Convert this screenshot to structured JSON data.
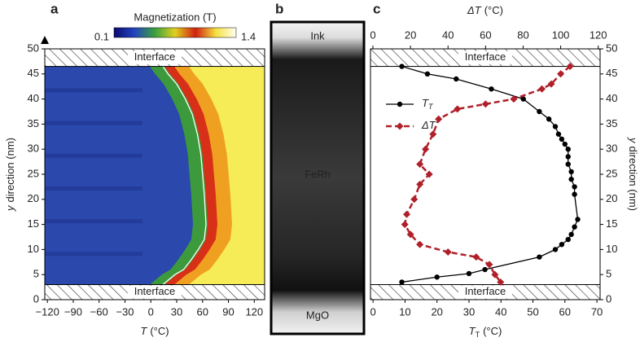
{
  "chart_data": [
    {
      "type": "heatmap",
      "panel_label": "a",
      "colorbar": {
        "label": "Magnetization (T)",
        "ticks": [
          0.1,
          1.4
        ],
        "colors": [
          "#0a0a70",
          "#2244c0",
          "#3aa040",
          "#e0d020",
          "#d02010",
          "#f5e040",
          "#fffff0"
        ]
      },
      "region_colors": {
        "low": "#2b48ad",
        "edge": "#3c9a3c",
        "rise": "#d83018",
        "warm": "#f0a020",
        "high": "#f6ec58"
      },
      "xlabel": {
        "var": "T",
        "unit": "(°C)"
      },
      "ylabel": {
        "var": "y",
        "unit": "direction (nm)"
      },
      "xlim": [
        -123,
        132
      ],
      "xticks": [
        {
          "value": -120,
          "label": "−120"
        },
        {
          "value": -90,
          "label": "−90"
        },
        {
          "value": -60,
          "label": "−60"
        },
        {
          "value": -30,
          "label": "−30"
        },
        0,
        30,
        60,
        90,
        120
      ],
      "ylim": [
        0,
        50
      ],
      "yticks": [
        0,
        5,
        10,
        15,
        20,
        25,
        30,
        35,
        40,
        45,
        50
      ],
      "interfaces": [
        {
          "range": [
            46.5,
            50
          ],
          "label": "Interface"
        },
        {
          "range": [
            0,
            3
          ],
          "label": "Interface"
        }
      ],
      "contour": {
        "x": [
          14,
          20,
          30,
          40,
          48,
          54,
          58,
          60,
          62,
          63,
          64,
          62,
          55,
          47,
          38,
          28,
          14
        ],
        "y": [
          46.5,
          45,
          43,
          40,
          37,
          33,
          29,
          25,
          21,
          18,
          15,
          12,
          10,
          8,
          6,
          5,
          3
        ]
      }
    },
    {
      "type": "image",
      "panel_label": "b",
      "labels": [
        "Ink",
        "FeRh",
        "MgO"
      ]
    },
    {
      "type": "line",
      "panel_label": "c",
      "xlabel": {
        "var": "T",
        "sub": "T",
        "unit": "(°C)"
      },
      "x2label": {
        "var": "ΔT",
        "unit": "(°C)"
      },
      "xlim": [
        -0.8,
        71
      ],
      "xticks": [
        0,
        10,
        20,
        30,
        40,
        50,
        60,
        70
      ],
      "x2lim": [
        -1.3,
        121
      ],
      "x2ticks": [
        0,
        20,
        40,
        60,
        80,
        100,
        120
      ],
      "ylim": [
        0,
        50
      ],
      "yticks": [
        0,
        5,
        10,
        15,
        20,
        25,
        30,
        35,
        40,
        45,
        50
      ],
      "ylabel": {
        "var": "y",
        "unit": "direction (nm)"
      },
      "interfaces": [
        {
          "range": [
            46.5,
            50
          ],
          "label": "Interface"
        },
        {
          "range": [
            0,
            3
          ],
          "label": "Interface"
        }
      ],
      "series": [
        {
          "name": "T",
          "name_sub": "T",
          "color": "#000000",
          "marker": "circle",
          "dashed": false,
          "x": [
            9,
            17,
            26,
            37,
            47,
            52,
            55,
            57,
            58,
            59,
            60,
            61,
            61,
            61,
            62,
            62,
            63,
            63,
            64,
            63,
            62,
            61,
            59,
            57,
            52,
            35,
            30,
            20,
            9
          ],
          "y": [
            46.5,
            45,
            44,
            42,
            40,
            37.5,
            36,
            34.5,
            33,
            32,
            31,
            30,
            28.5,
            27,
            25.5,
            24,
            22.5,
            21,
            16,
            14.5,
            13,
            12,
            11,
            10,
            8.5,
            6,
            5.2,
            4.5,
            3.5
          ]
        },
        {
          "name": "ΔT",
          "color": "#b0202a",
          "marker": "diamond",
          "dashed": true,
          "axis": "x2",
          "x": [
            105,
            100,
            95,
            90,
            75,
            60,
            45,
            35,
            32,
            28,
            25,
            30,
            25,
            22,
            18,
            17,
            20,
            25,
            40,
            55,
            62,
            65,
            68
          ],
          "y": [
            46.5,
            45,
            43,
            42,
            40,
            39,
            38,
            36,
            33,
            30,
            27,
            25,
            23,
            20,
            17,
            15,
            13,
            11,
            9.5,
            8.5,
            7,
            5,
            3.5
          ]
        }
      ]
    }
  ]
}
